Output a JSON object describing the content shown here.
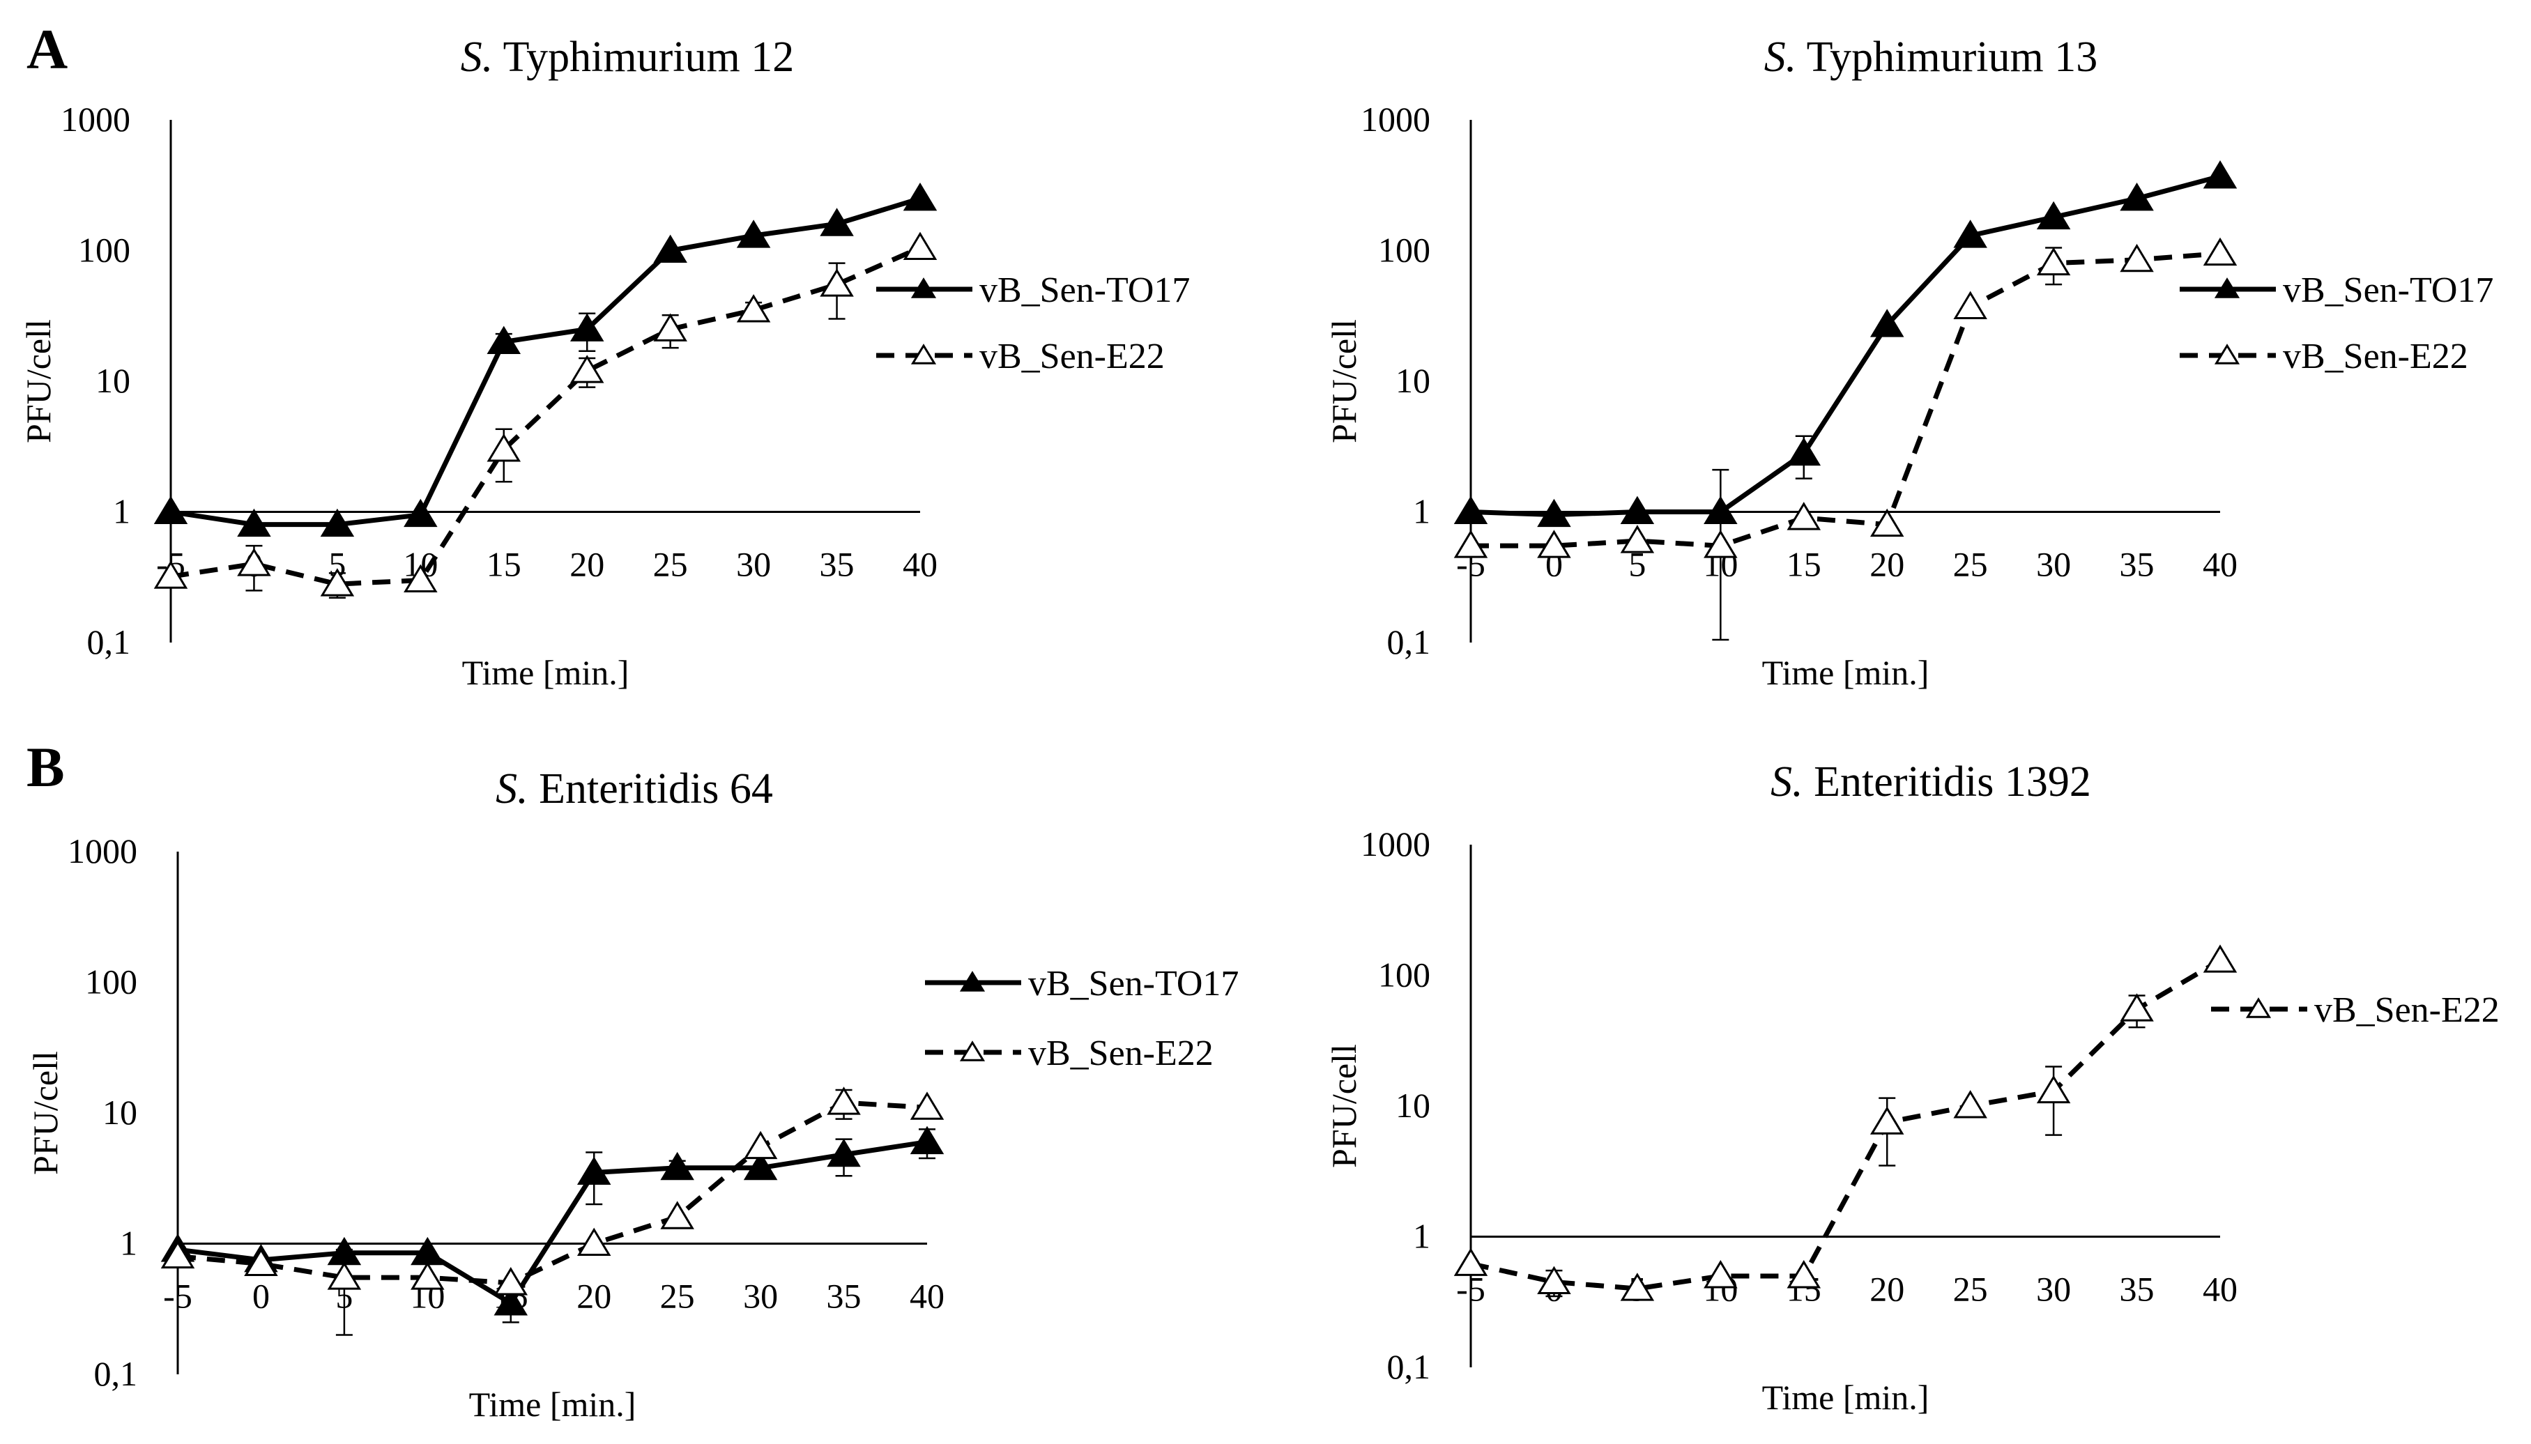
{
  "panel_labels": [
    "A",
    "B"
  ],
  "chart_data": [
    {
      "type": "line",
      "panel": "A",
      "title": {
        "prefix": "S.",
        "rest": " Typhimurium 12"
      },
      "xlabel": "Time [min.]",
      "ylabel": "PFU/cell",
      "yscale": "log",
      "ylim": [
        0.1,
        1000
      ],
      "yticks": [
        "1000",
        "100",
        "10",
        "1",
        "0,1"
      ],
      "x": [
        -5,
        0,
        5,
        10,
        15,
        20,
        25,
        30,
        35,
        40
      ],
      "xtick_labels": [
        "-5",
        "0",
        "5",
        "10",
        "15",
        "20",
        "25",
        "30",
        "35",
        "40"
      ],
      "xaxis_at_y": 1,
      "legend_position": "right",
      "series": [
        {
          "name": "vB_Sen-TO17",
          "style": "solid",
          "marker": "filled-triangle",
          "values": [
            1.0,
            0.8,
            0.8,
            0.95,
            20,
            25,
            100,
            130,
            160,
            250
          ],
          "error": [
            0,
            0,
            0,
            0,
            3,
            8,
            0,
            0,
            0,
            0
          ]
        },
        {
          "name": "vB_Sen-E22",
          "style": "dashed",
          "marker": "open-triangle",
          "values": [
            0.32,
            0.4,
            0.28,
            0.3,
            3,
            12,
            25,
            35,
            55,
            105
          ],
          "error": [
            0,
            0.15,
            0.06,
            0,
            1.3,
            3,
            7,
            5,
            25,
            0
          ]
        }
      ]
    },
    {
      "type": "line",
      "panel": "",
      "title": {
        "prefix": "S.",
        "rest": " Typhimurium 13"
      },
      "xlabel": "Time [min.]",
      "ylabel": "PFU/cell",
      "yscale": "log",
      "ylim": [
        0.1,
        1000
      ],
      "yticks": [
        "1000",
        "100",
        "10",
        "1",
        "0,1"
      ],
      "x": [
        -5,
        0,
        5,
        10,
        15,
        20,
        25,
        30,
        35,
        40
      ],
      "xtick_labels": [
        "-5",
        "0",
        "5",
        "10",
        "15",
        "20",
        "25",
        "30",
        "35",
        "40"
      ],
      "xaxis_at_y": 1,
      "legend_position": "right",
      "series": [
        {
          "name": "vB_Sen-TO17",
          "style": "solid",
          "marker": "filled-triangle",
          "values": [
            1.0,
            0.95,
            1.0,
            1.0,
            2.8,
            27,
            130,
            180,
            250,
            370
          ],
          "error": [
            0,
            0,
            0,
            1.1,
            1.0,
            0,
            0,
            0,
            0,
            0
          ]
        },
        {
          "name": "vB_Sen-E22",
          "style": "dashed",
          "marker": "open-triangle",
          "values": [
            0.55,
            0.55,
            0.6,
            0.55,
            0.9,
            0.8,
            37,
            80,
            85,
            95
          ],
          "error": [
            0,
            0,
            0,
            0,
            0,
            0,
            0,
            25,
            0,
            0
          ]
        }
      ]
    },
    {
      "type": "line",
      "panel": "B",
      "title": {
        "prefix": "S.",
        "rest": " Enteritidis 64"
      },
      "xlabel": "Time [min.]",
      "ylabel": "PFU/cell",
      "yscale": "log",
      "ylim": [
        0.1,
        1000
      ],
      "yticks": [
        "1000",
        "100",
        "10",
        "1",
        "0,1"
      ],
      "x": [
        -5,
        0,
        5,
        10,
        15,
        20,
        25,
        30,
        35,
        40
      ],
      "xtick_labels": [
        "-5",
        "0",
        "5",
        "10",
        "15",
        "20",
        "25",
        "30",
        "35",
        "40"
      ],
      "xaxis_at_y": 1,
      "legend_position": "right",
      "series": [
        {
          "name": "vB_Sen-TO17",
          "style": "solid",
          "marker": "filled-triangle",
          "values": [
            0.9,
            0.75,
            0.85,
            0.85,
            0.35,
            3.5,
            3.8,
            3.8,
            4.8,
            6.0
          ],
          "error": [
            0,
            0,
            0,
            0,
            0.1,
            1.5,
            0.5,
            0,
            1.5,
            1.5
          ]
        },
        {
          "name": "vB_Sen-E22",
          "style": "dashed",
          "marker": "open-triangle",
          "values": [
            0.8,
            0.7,
            0.55,
            0.55,
            0.5,
            1.0,
            1.6,
            5.5,
            12,
            11
          ],
          "error": [
            0,
            0,
            0.35,
            0,
            0,
            0,
            0,
            0,
            3,
            0
          ]
        }
      ]
    },
    {
      "type": "line",
      "panel": "",
      "title": {
        "prefix": "S.",
        "rest": " Enteritidis 1392"
      },
      "xlabel": "Time [min.]",
      "ylabel": "PFU/cell",
      "yscale": "log",
      "ylim": [
        0.1,
        1000
      ],
      "yticks": [
        "1000",
        "100",
        "10",
        "1",
        "0,1"
      ],
      "x": [
        -5,
        0,
        5,
        10,
        15,
        20,
        25,
        30,
        35,
        40
      ],
      "xtick_labels": [
        "-5",
        "0",
        "5",
        "10",
        "15",
        "20",
        "25",
        "30",
        "35",
        "40"
      ],
      "xaxis_at_y": 1,
      "legend_position": "right",
      "series": [
        {
          "name": "vB_Sen-E22",
          "style": "dashed",
          "marker": "open-triangle",
          "values": [
            0.62,
            0.45,
            0.4,
            0.5,
            0.5,
            7.5,
            10,
            13,
            55,
            130
          ],
          "error": [
            0,
            0.1,
            0,
            0,
            0,
            4,
            0,
            7,
            15,
            0
          ]
        }
      ]
    }
  ]
}
